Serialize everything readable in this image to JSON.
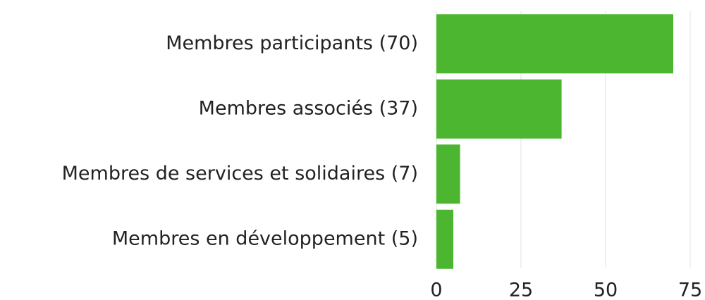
{
  "chart_data": {
    "type": "hbar",
    "categories": [
      "Membres participants (70)",
      "Membres associés (37)",
      "Membres de services et solidaires (7)",
      "Membres en développement (5)"
    ],
    "values": [
      70,
      37,
      7,
      5
    ],
    "color": "#4cb631",
    "xlim": [
      0,
      75
    ],
    "xticks": [
      0,
      25,
      50,
      75
    ],
    "grid": true
  }
}
